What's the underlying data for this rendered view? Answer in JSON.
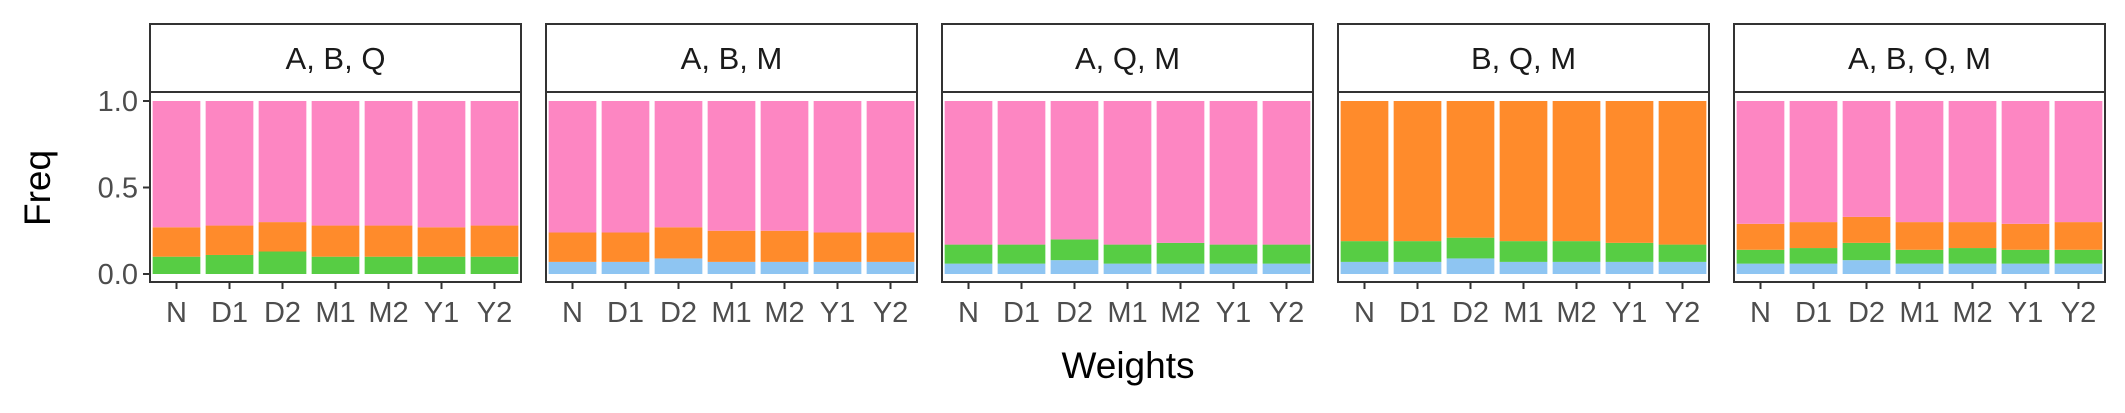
{
  "chart_data": {
    "type": "bar",
    "stacked": true,
    "xlabel": "Weights",
    "ylabel": "Freq",
    "ylim": [
      0,
      1.0
    ],
    "yticks": [
      0.0,
      0.5,
      1.0
    ],
    "ytick_labels": [
      "0.0",
      "0.5",
      "1.0"
    ],
    "legend": "none",
    "grid": false,
    "categories": [
      "N",
      "D1",
      "D2",
      "M1",
      "M2",
      "Y1",
      "Y2"
    ],
    "stack_order": [
      "light-blue",
      "green",
      "orange",
      "pink"
    ],
    "colors": {
      "light-blue": "#8ec5f2",
      "green": "#57cd44",
      "orange": "#ff8b2b",
      "pink": "#fd86c2"
    },
    "panels": [
      {
        "title": "A, B, Q",
        "series": [
          {
            "color": "light-blue",
            "values": [
              0,
              0,
              0,
              0,
              0,
              0,
              0
            ]
          },
          {
            "color": "green",
            "values": [
              0.1,
              0.11,
              0.13,
              0.1,
              0.1,
              0.1,
              0.1
            ]
          },
          {
            "color": "orange",
            "values": [
              0.17,
              0.17,
              0.17,
              0.18,
              0.18,
              0.17,
              0.18
            ]
          },
          {
            "color": "pink",
            "values": [
              0.73,
              0.72,
              0.7,
              0.72,
              0.72,
              0.73,
              0.72
            ]
          }
        ]
      },
      {
        "title": "A, B, M",
        "series": [
          {
            "color": "light-blue",
            "values": [
              0.07,
              0.07,
              0.09,
              0.07,
              0.07,
              0.07,
              0.07
            ]
          },
          {
            "color": "green",
            "values": [
              0,
              0,
              0,
              0,
              0,
              0,
              0
            ]
          },
          {
            "color": "orange",
            "values": [
              0.17,
              0.17,
              0.18,
              0.18,
              0.18,
              0.17,
              0.17
            ]
          },
          {
            "color": "pink",
            "values": [
              0.76,
              0.76,
              0.73,
              0.75,
              0.75,
              0.76,
              0.76
            ]
          }
        ]
      },
      {
        "title": "A, Q, M",
        "series": [
          {
            "color": "light-blue",
            "values": [
              0.06,
              0.06,
              0.08,
              0.06,
              0.06,
              0.06,
              0.06
            ]
          },
          {
            "color": "green",
            "values": [
              0.11,
              0.11,
              0.12,
              0.11,
              0.12,
              0.11,
              0.11
            ]
          },
          {
            "color": "orange",
            "values": [
              0,
              0,
              0,
              0,
              0,
              0,
              0
            ]
          },
          {
            "color": "pink",
            "values": [
              0.83,
              0.83,
              0.8,
              0.83,
              0.82,
              0.83,
              0.83
            ]
          }
        ]
      },
      {
        "title": "B, Q, M",
        "series": [
          {
            "color": "light-blue",
            "values": [
              0.07,
              0.07,
              0.09,
              0.07,
              0.07,
              0.07,
              0.07
            ]
          },
          {
            "color": "green",
            "values": [
              0.12,
              0.12,
              0.12,
              0.12,
              0.12,
              0.11,
              0.1
            ]
          },
          {
            "color": "orange",
            "values": [
              0.81,
              0.81,
              0.79,
              0.81,
              0.81,
              0.82,
              0.83
            ]
          },
          {
            "color": "pink",
            "values": [
              0,
              0,
              0,
              0,
              0,
              0,
              0
            ]
          }
        ]
      },
      {
        "title": "A, B, Q, M",
        "series": [
          {
            "color": "light-blue",
            "values": [
              0.06,
              0.06,
              0.08,
              0.06,
              0.06,
              0.06,
              0.06
            ]
          },
          {
            "color": "green",
            "values": [
              0.08,
              0.09,
              0.1,
              0.08,
              0.09,
              0.08,
              0.08
            ]
          },
          {
            "color": "orange",
            "values": [
              0.15,
              0.15,
              0.15,
              0.16,
              0.15,
              0.15,
              0.16
            ]
          },
          {
            "color": "pink",
            "values": [
              0.71,
              0.7,
              0.67,
              0.7,
              0.7,
              0.71,
              0.7
            ]
          }
        ]
      }
    ]
  }
}
